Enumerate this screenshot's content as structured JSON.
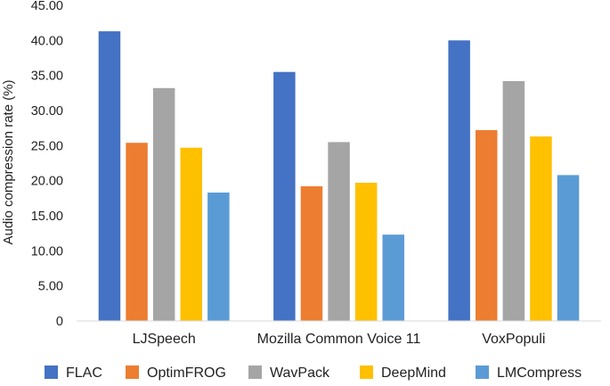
{
  "chart_data": {
    "type": "bar",
    "title": "",
    "xlabel": "",
    "ylabel": "Audio compression rate (%)",
    "ylim": [
      0,
      45
    ],
    "yticks": [
      "0",
      "5.00",
      "10.00",
      "15.00",
      "20.00",
      "25.00",
      "30.00",
      "35.00",
      "40.00",
      "45.00"
    ],
    "grid": false,
    "legend_position": "bottom",
    "categories": [
      "LJSpeech",
      "Mozilla Common Voice 11",
      "VoxPopuli"
    ],
    "series": [
      {
        "name": "FLAC",
        "color": "#4472C4",
        "values": [
          41.3,
          35.5,
          40.0
        ]
      },
      {
        "name": "OptimFROG",
        "color": "#ED7D31",
        "values": [
          25.4,
          19.2,
          27.2
        ]
      },
      {
        "name": "WavPack",
        "color": "#A5A5A5",
        "values": [
          33.2,
          25.5,
          34.2
        ]
      },
      {
        "name": "DeepMind",
        "color": "#FFC000",
        "values": [
          24.7,
          19.7,
          26.3
        ]
      },
      {
        "name": "LMCompress",
        "color": "#5B9BD5",
        "values": [
          18.3,
          12.3,
          20.8
        ]
      }
    ]
  }
}
